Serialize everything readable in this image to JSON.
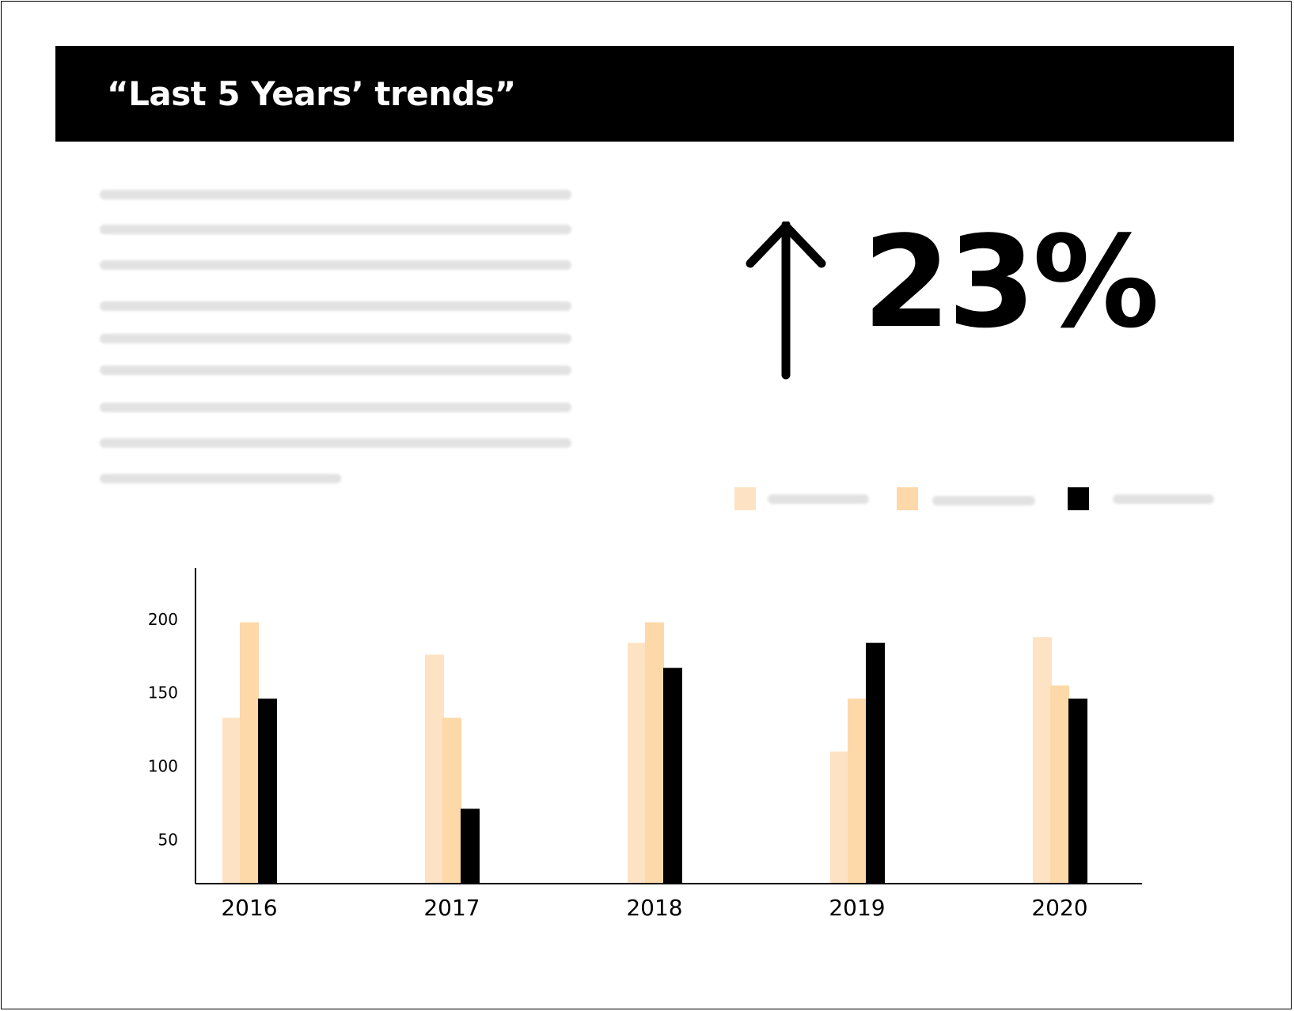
{
  "header": {
    "title": "“Last 5 Years’ trends”"
  },
  "kpi": {
    "icon": "arrow-up-icon",
    "value": "23%"
  },
  "legend": {
    "items": [
      {
        "color": "#fde3c4"
      },
      {
        "color": "#fdd8a8"
      },
      {
        "color": "#000000"
      }
    ]
  },
  "colors": {
    "header_bg": "#000000",
    "header_text": "#ffffff",
    "placeholder_text": "#e2e2e2"
  },
  "chart_data": {
    "type": "bar",
    "categories": [
      "2016",
      "2017",
      "2018",
      "2019",
      "2020"
    ],
    "series": [
      {
        "color": "#fde3c4",
        "values": [
          133,
          176,
          184,
          110,
          188
        ]
      },
      {
        "color": "#fdd8a8",
        "values": [
          198,
          133,
          198,
          146,
          155
        ]
      },
      {
        "color": "#000000",
        "values": [
          146,
          71,
          167,
          184,
          146
        ]
      }
    ],
    "yticks": [
      50,
      100,
      150,
      200
    ],
    "ylim": [
      20,
      235
    ],
    "title": "",
    "xlabel": "",
    "ylabel": "",
    "grid": false,
    "legend_position": "top-right"
  }
}
